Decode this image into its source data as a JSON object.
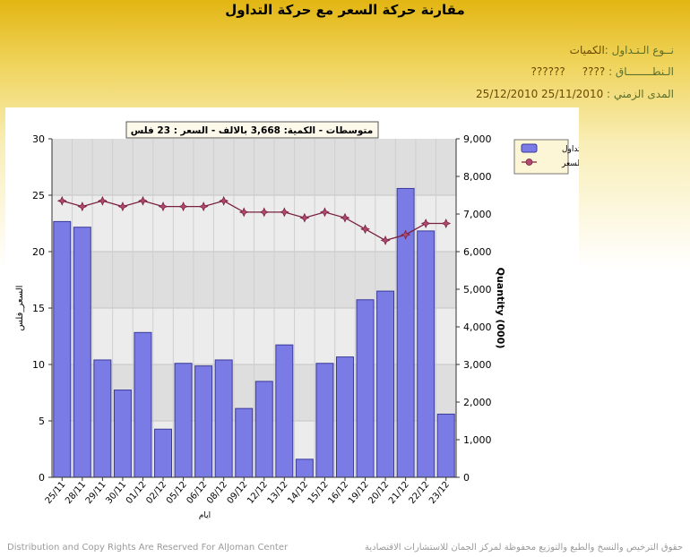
{
  "page": {
    "title": "مقارنة حركة السعر مع حركة التداول",
    "trade_type_label": "نــوع الـتـداول :",
    "trade_type_value": "الكميات",
    "sector_label": "الـنطــــــــاق :",
    "sector_value1": "????",
    "sector_value2": "??????",
    "period_label": "المدى الزمني :",
    "period_from": "25/11/2010",
    "period_to": "25/12/2010",
    "footer_en": "Distribution and Copy Rights Are Reserved For AlJoman Center",
    "footer_ar": "حقوق الترخيص والنسخ والطبع والتوزيع محفوظة لمركز الجمان للاستشارات الاقتصادية"
  },
  "colors": {
    "bar_fill": "#7b7be6",
    "bar_stroke": "#3a3a9a",
    "line": "#7a2040",
    "marker": "#b04a70"
  },
  "chart_data": {
    "type": "bar",
    "title": "متوسطات - الكمية: 3,668 بالالف   - السعر : 23 فلس",
    "xlabel": "ايام",
    "ylabel_left": "السعر_فلس",
    "ylabel_right": "Quantity (000)",
    "categories": [
      "25/11",
      "28/11",
      "29/11",
      "30/11",
      "01/12",
      "02/12",
      "05/12",
      "06/12",
      "08/12",
      "09/12",
      "12/12",
      "13/12",
      "14/12",
      "15/12",
      "16/12",
      "19/12",
      "20/12",
      "21/12",
      "22/12",
      "23/12"
    ],
    "series": [
      {
        "name": "تداول",
        "axis": "right",
        "type": "bar",
        "values": [
          6800,
          6650,
          3120,
          2320,
          3850,
          1280,
          3030,
          2960,
          3120,
          1830,
          2550,
          3520,
          480,
          3030,
          3200,
          4720,
          4950,
          7680,
          6550,
          1680
        ]
      },
      {
        "name": "السعر",
        "axis": "left",
        "type": "line",
        "values": [
          24.5,
          24,
          24.5,
          24,
          24.5,
          24,
          24,
          24,
          24.5,
          23.5,
          23.5,
          23.5,
          23,
          23.5,
          23,
          22,
          21,
          21.5,
          22.5,
          22.5
        ]
      }
    ],
    "ylim_left": [
      0,
      30
    ],
    "yticks_left": [
      "0",
      "5",
      "10",
      "15",
      "20",
      "25",
      "30"
    ],
    "ylim_right": [
      0,
      9000
    ],
    "yticks_right": [
      "0",
      "1,000",
      "2,000",
      "3,000",
      "4,000",
      "5,000",
      "6,000",
      "7,000",
      "8,000",
      "9,000"
    ],
    "legend": {
      "position": "top-right",
      "items": [
        "تداول",
        "السعر"
      ]
    },
    "grid": true
  }
}
